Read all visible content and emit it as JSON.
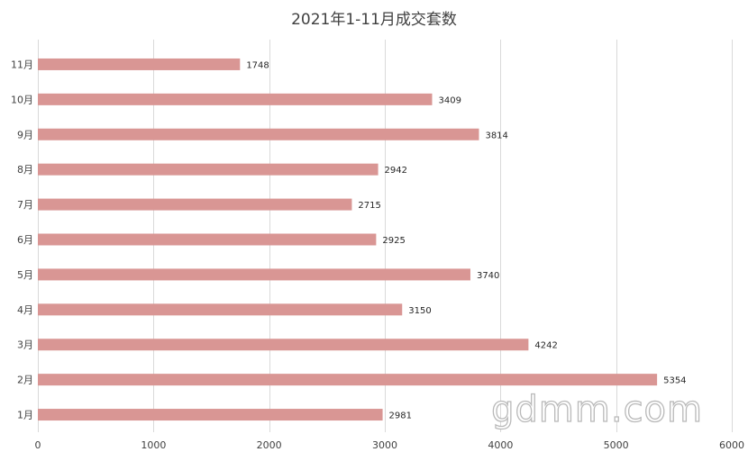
{
  "chart_data": {
    "type": "bar",
    "orientation": "horizontal",
    "title": "2021年1-11月成交套数",
    "xlabel": "",
    "ylabel": "",
    "categories": [
      "1月",
      "2月",
      "3月",
      "4月",
      "5月",
      "6月",
      "7月",
      "8月",
      "9月",
      "10月",
      "11月"
    ],
    "values": [
      2981,
      5354,
      4242,
      3150,
      3740,
      2925,
      2715,
      2942,
      3814,
      3409,
      1748
    ],
    "xlim": [
      0,
      6000
    ],
    "xticks": [
      0,
      1000,
      2000,
      3000,
      4000,
      5000,
      6000
    ],
    "grid": true,
    "legend": "none",
    "data_labels": true,
    "bar_color": "#d99694",
    "grid_color": "#d9d9d9"
  },
  "watermark": "gdmm.com"
}
